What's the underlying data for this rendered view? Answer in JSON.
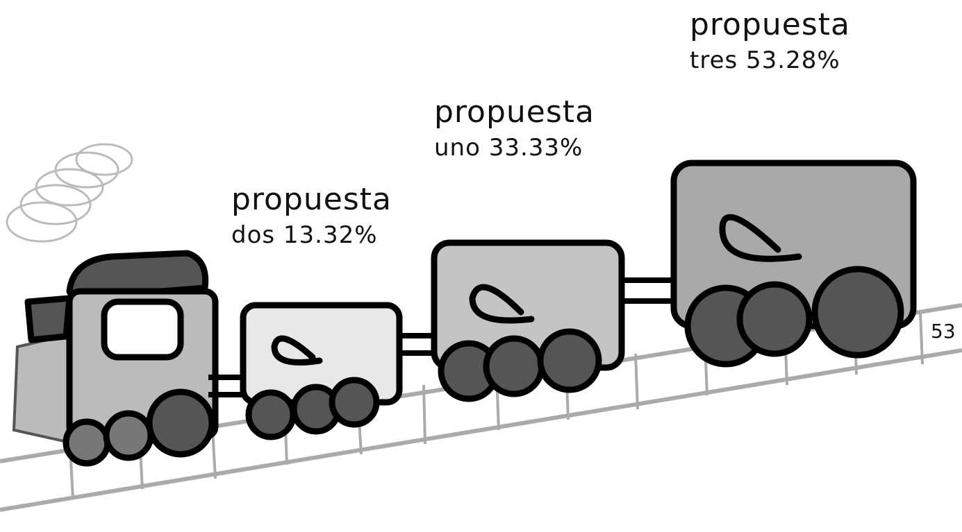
{
  "labels": [
    {
      "title": "propuesta",
      "detail": "dos 13.32%"
    },
    {
      "title": "propuesta",
      "detail": "uno 33.33%"
    },
    {
      "title": "propuesta",
      "detail": "tres 53.28%"
    }
  ],
  "page_number": "53"
}
